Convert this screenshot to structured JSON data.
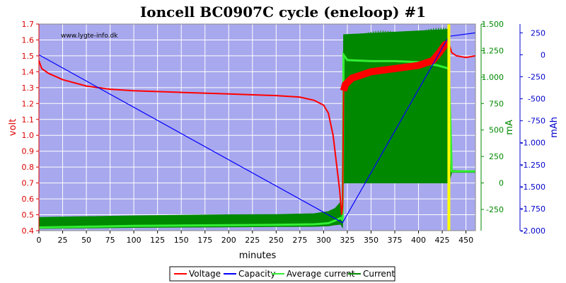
{
  "chart_data": {
    "type": "line",
    "title": "Ioncell BC0907C cycle (eneloop) #1",
    "watermark": "www.lygte-info.dk",
    "xlabel": "minutes",
    "xlim": [
      0,
      460
    ],
    "x_ticks": [
      0,
      25,
      50,
      75,
      100,
      125,
      150,
      175,
      200,
      225,
      250,
      275,
      300,
      325,
      350,
      375,
      400,
      425,
      450
    ],
    "axes": {
      "voltage": {
        "label": "volt",
        "color": "#dd0000",
        "lim": [
          0.4,
          1.7
        ],
        "ticks": [
          "0.4",
          "0.5",
          "0.6",
          "0.7",
          "0.8",
          "0.9",
          "1.0",
          "1.1",
          "1.2",
          "1.3",
          "1.4",
          "1.5",
          "1.6",
          "1.7"
        ]
      },
      "current": {
        "label": "mA",
        "color": "#008800",
        "lim": [
          -450,
          1500
        ],
        "ticks": [
          "-250",
          "0",
          "250",
          "500",
          "750",
          "1.000",
          "1.250",
          "1.500"
        ]
      },
      "capacity": {
        "label": "mAh",
        "color": "#0000cc",
        "lim": [
          -2000,
          350
        ],
        "ticks": [
          "-2.000",
          "-1.750",
          "-1.500",
          "-1.250",
          "-1.000",
          "-750",
          "-500",
          "-250",
          "0",
          "250"
        ]
      }
    },
    "grid": true,
    "legend_position": "bottom",
    "colors": {
      "background": "#a8a8ee",
      "grid": "#ffffff",
      "marker": "#ffff00"
    },
    "marker_line_x": 432,
    "series": [
      {
        "name": "Voltage",
        "axis": "voltage",
        "color": "#ff0000",
        "x": [
          0,
          3,
          10,
          25,
          50,
          75,
          100,
          150,
          200,
          250,
          275,
          290,
          300,
          305,
          310,
          314,
          317,
          319,
          320,
          321,
          323,
          330,
          350,
          375,
          400,
          415,
          422,
          428,
          432,
          435,
          440,
          450,
          460
        ],
        "y": [
          1.47,
          1.42,
          1.39,
          1.35,
          1.31,
          1.29,
          1.28,
          1.27,
          1.26,
          1.25,
          1.24,
          1.22,
          1.19,
          1.14,
          1.0,
          0.8,
          0.65,
          0.5,
          0.55,
          1.28,
          1.32,
          1.36,
          1.4,
          1.42,
          1.44,
          1.47,
          1.52,
          1.57,
          1.58,
          1.52,
          1.5,
          1.49,
          1.5
        ]
      },
      {
        "name": "Capacity",
        "axis": "capacity",
        "color": "#0000ff",
        "x": [
          0,
          320,
          432,
          460
        ],
        "y": [
          0,
          -1910,
          210,
          250
        ]
      },
      {
        "name": "Average current",
        "axis": "current",
        "color": "#33ee33",
        "x": [
          0,
          100,
          200,
          250,
          290,
          305,
          312,
          318,
          320,
          321,
          325,
          350,
          375,
          400,
          420,
          432,
          435,
          460
        ],
        "y": [
          -420,
          -405,
          -398,
          -395,
          -390,
          -380,
          -355,
          -330,
          -350,
          1210,
          1160,
          1150,
          1150,
          1140,
          1110,
          1080,
          110,
          110
        ]
      },
      {
        "name": "Current",
        "axis": "current",
        "color": "#008800",
        "x": [
          0,
          100,
          200,
          250,
          290,
          305,
          312,
          318,
          320,
          321,
          432,
          435,
          460
        ],
        "y": [
          -325,
          -310,
          -300,
          -298,
          -290,
          -270,
          -240,
          -180,
          -300,
          1400,
          1450,
          120,
          110
        ],
        "pulse_band_low": [
          -430,
          -420,
          -415,
          -412,
          -410,
          -405,
          -395,
          -390,
          -420,
          0,
          0,
          100,
          100
        ]
      }
    ]
  }
}
